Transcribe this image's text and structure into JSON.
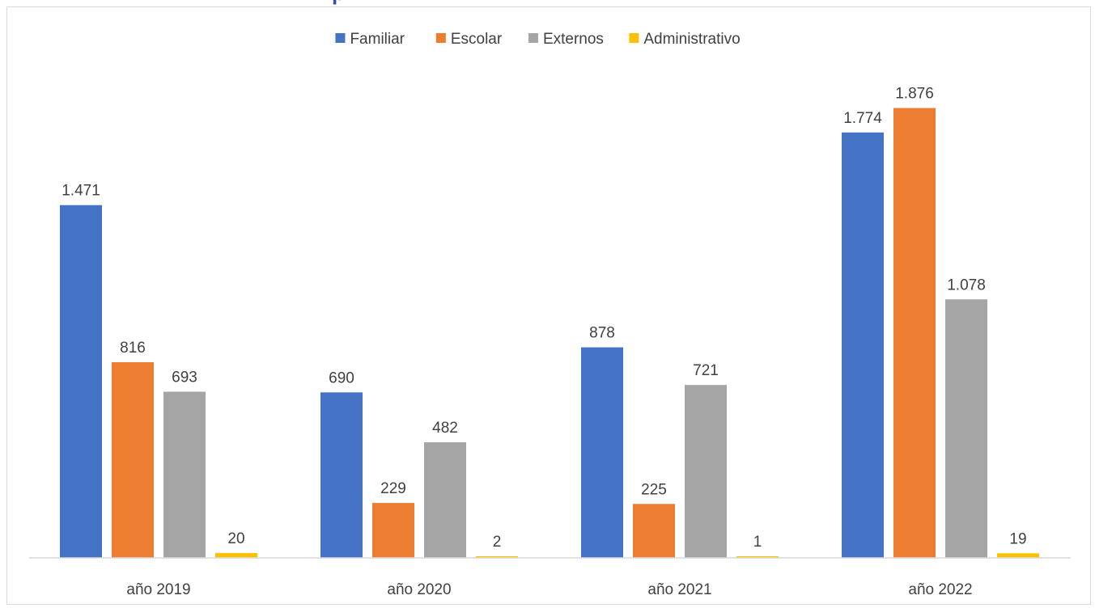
{
  "header": {
    "title_cut": "p"
  },
  "chart_data": {
    "type": "bar",
    "categories": [
      "año 2019",
      "año 2020",
      "año 2021",
      "año 2022"
    ],
    "series": [
      {
        "name": "Familiar",
        "color": "#4472c4",
        "values": [
          1471,
          690,
          878,
          1774
        ],
        "labels": [
          "1.471",
          "690",
          "878",
          "1.774"
        ]
      },
      {
        "name": "Escolar",
        "color": "#ed7d31",
        "values": [
          816,
          229,
          225,
          1876
        ],
        "labels": [
          "816",
          "229",
          "225",
          "1.876"
        ]
      },
      {
        "name": "Externos",
        "color": "#a5a5a5",
        "values": [
          693,
          482,
          721,
          1078
        ],
        "labels": [
          "693",
          "482",
          "721",
          "1.078"
        ]
      },
      {
        "name": "Administrativo",
        "color": "#ffc000",
        "values": [
          20,
          2,
          1,
          19
        ],
        "labels": [
          "20",
          "2",
          "1",
          "19"
        ]
      }
    ],
    "ylim": [
      0,
      2000
    ],
    "grid": false,
    "legend": "top",
    "xlabel": "",
    "ylabel": ""
  }
}
